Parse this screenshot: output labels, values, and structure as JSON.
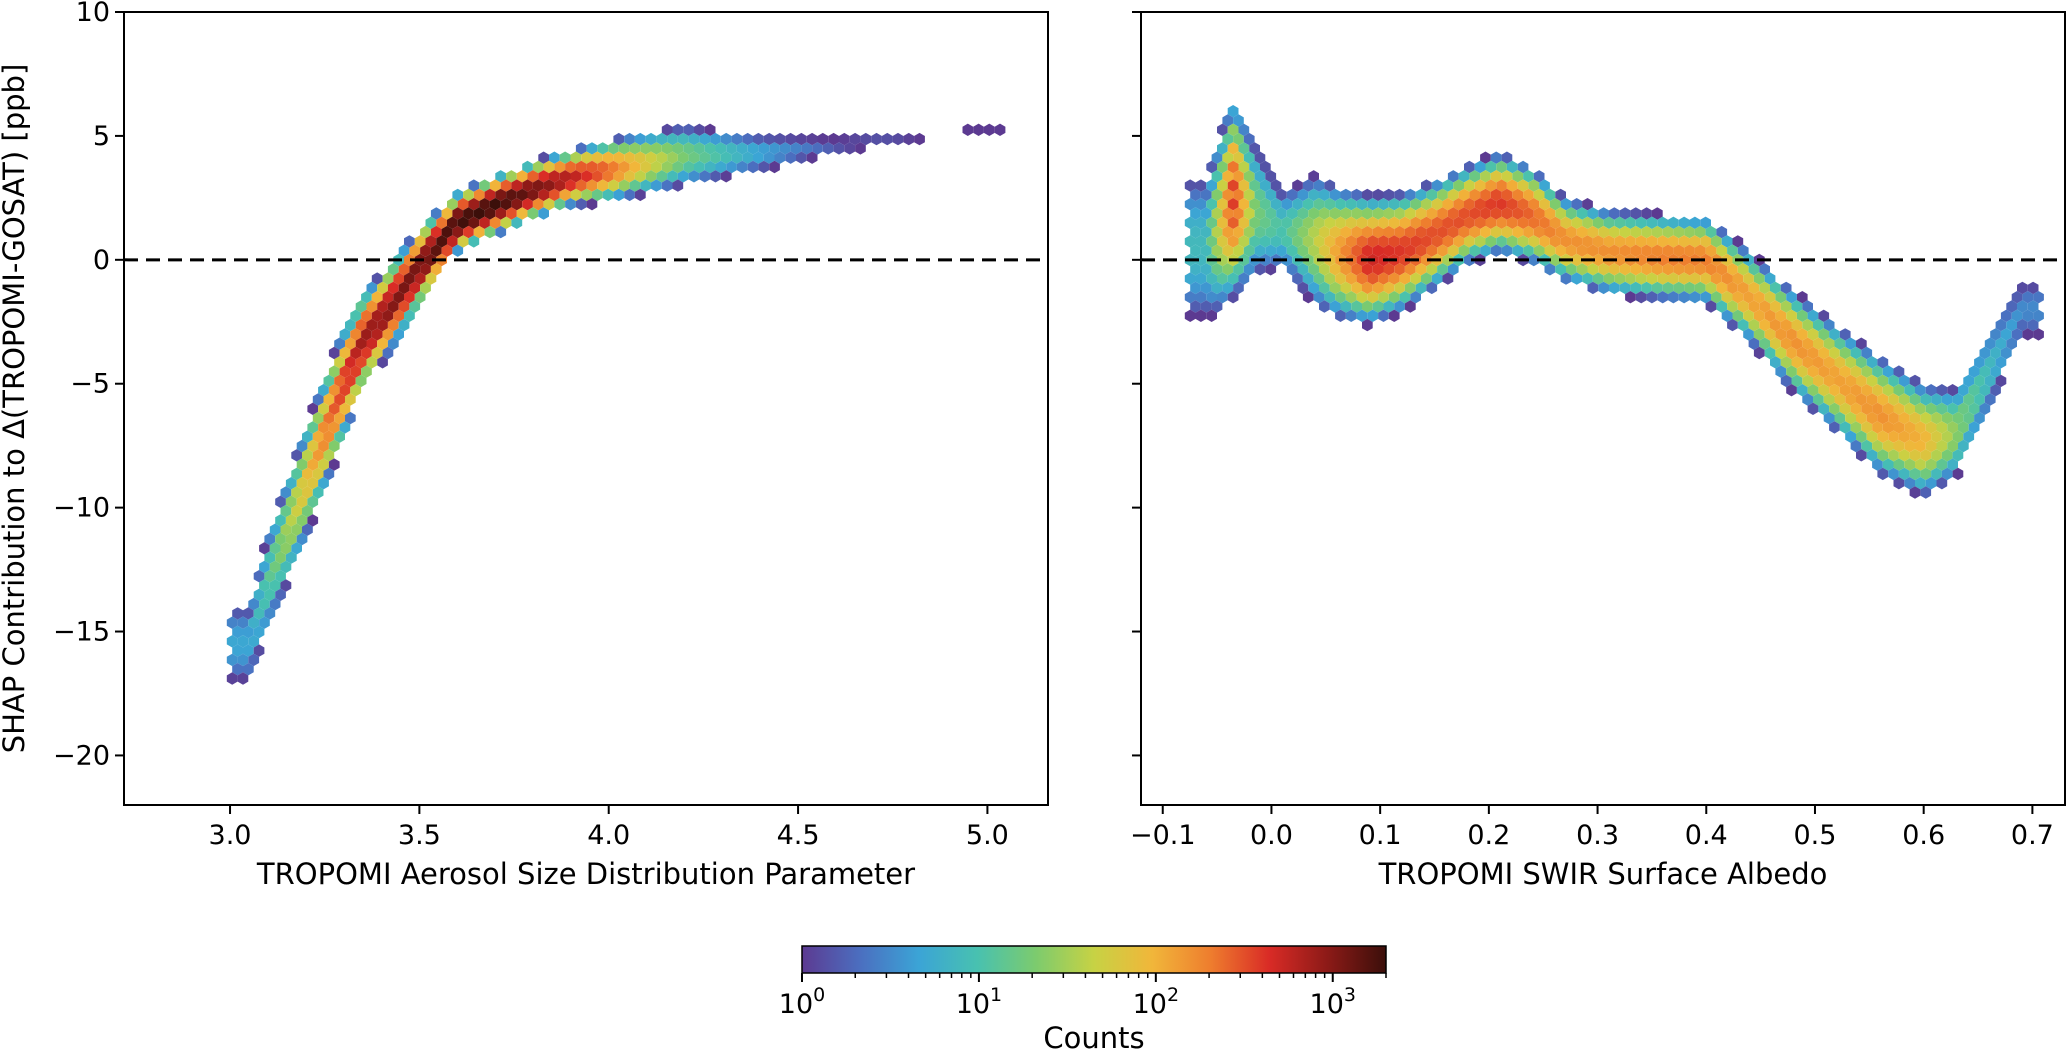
{
  "chart_data": [
    {
      "type": "heatmap",
      "subtype": "hexbin",
      "xlabel": "TROPOMI Aerosol Size Distribution Parameter",
      "ylabel": "SHAP Contribution to Δ(TROPOMI-GOSAT) [ppb]",
      "xlim": [
        2.72,
        5.16
      ],
      "ylim": [
        -22,
        10
      ],
      "xticks": [
        3.0,
        3.5,
        4.0,
        4.5,
        5.0
      ],
      "xtick_labels": [
        "3.0",
        "3.5",
        "4.0",
        "4.5",
        "5.0"
      ],
      "yticks": [
        10,
        5,
        0,
        -5,
        -10,
        -15,
        -20
      ],
      "ytick_labels": [
        "10",
        "5",
        "0",
        "−5",
        "−10",
        "−15",
        "−20"
      ],
      "reference_line": {
        "y": 0,
        "style": "dashed"
      },
      "density_ridge": [
        {
          "x": 3.05,
          "y": -15.5,
          "spread": 1.5,
          "log_count": 0.7
        },
        {
          "x": 3.1,
          "y": -13.0,
          "spread": 1.6,
          "log_count": 1.1
        },
        {
          "x": 3.15,
          "y": -11.0,
          "spread": 1.5,
          "log_count": 1.5
        },
        {
          "x": 3.2,
          "y": -9.0,
          "spread": 1.4,
          "log_count": 1.9
        },
        {
          "x": 3.25,
          "y": -7.0,
          "spread": 1.3,
          "log_count": 2.3
        },
        {
          "x": 3.3,
          "y": -5.0,
          "spread": 1.2,
          "log_count": 2.6
        },
        {
          "x": 3.35,
          "y": -3.3,
          "spread": 1.0,
          "log_count": 2.9
        },
        {
          "x": 3.42,
          "y": -2.0,
          "spread": 0.9,
          "log_count": 3.0
        },
        {
          "x": 3.5,
          "y": -0.3,
          "spread": 0.8,
          "log_count": 3.1
        },
        {
          "x": 3.6,
          "y": 1.5,
          "spread": 0.6,
          "log_count": 3.3
        },
        {
          "x": 3.7,
          "y": 2.2,
          "spread": 0.6,
          "log_count": 3.3
        },
        {
          "x": 3.8,
          "y": 2.8,
          "spread": 0.6,
          "log_count": 3.1
        },
        {
          "x": 3.9,
          "y": 3.3,
          "spread": 0.6,
          "log_count": 2.8
        },
        {
          "x": 4.0,
          "y": 3.6,
          "spread": 0.7,
          "log_count": 2.4
        },
        {
          "x": 4.1,
          "y": 3.9,
          "spread": 0.8,
          "log_count": 1.8
        },
        {
          "x": 4.2,
          "y": 4.2,
          "spread": 0.9,
          "log_count": 1.3
        },
        {
          "x": 4.4,
          "y": 4.3,
          "spread": 0.7,
          "log_count": 0.7
        },
        {
          "x": 4.6,
          "y": 4.6,
          "spread": 0.5,
          "log_count": 0.2
        },
        {
          "x": 4.8,
          "y": 5.0,
          "spread": 0.4,
          "log_count": 0.1
        },
        {
          "x": 5.0,
          "y": 5.2,
          "spread": 0.3,
          "log_count": 0.0
        }
      ]
    },
    {
      "type": "heatmap",
      "subtype": "hexbin",
      "xlabel": "TROPOMI SWIR Surface Albedo",
      "ylabel": "",
      "xlim": [
        -0.12,
        0.73
      ],
      "ylim": [
        -22,
        10
      ],
      "xticks": [
        -0.1,
        0.0,
        0.1,
        0.2,
        0.3,
        0.4,
        0.5,
        0.6,
        0.7
      ],
      "xtick_labels": [
        "−0.1",
        "0.0",
        "0.1",
        "0.2",
        "0.3",
        "0.4",
        "0.5",
        "0.6",
        "0.7"
      ],
      "yticks": [
        10,
        5,
        0,
        -5,
        -10,
        -15,
        -20
      ],
      "ytick_labels": [
        "",
        "",
        "",
        "",
        "",
        "",
        ""
      ],
      "reference_line": {
        "y": 0,
        "style": "dashed"
      },
      "density_ridge": [
        {
          "x": -0.06,
          "y": 0.5,
          "spread": 2.5,
          "log_count": 0.9
        },
        {
          "x": -0.035,
          "y": 2.5,
          "spread": 2.2,
          "log_count": 2.6
        },
        {
          "x": -0.015,
          "y": 2.0,
          "spread": 2.0,
          "log_count": 1.3
        },
        {
          "x": 0.01,
          "y": 1.2,
          "spread": 1.3,
          "log_count": 1.0
        },
        {
          "x": 0.04,
          "y": 0.8,
          "spread": 1.8,
          "log_count": 1.6
        },
        {
          "x": 0.06,
          "y": 0.3,
          "spread": 1.6,
          "log_count": 2.1
        },
        {
          "x": 0.09,
          "y": 0.0,
          "spread": 1.4,
          "log_count": 2.7
        },
        {
          "x": 0.12,
          "y": 0.3,
          "spread": 1.3,
          "log_count": 2.6
        },
        {
          "x": 0.15,
          "y": 1.0,
          "spread": 1.2,
          "log_count": 2.5
        },
        {
          "x": 0.18,
          "y": 1.8,
          "spread": 1.1,
          "log_count": 2.5
        },
        {
          "x": 0.21,
          "y": 2.3,
          "spread": 1.1,
          "log_count": 2.6
        },
        {
          "x": 0.24,
          "y": 1.8,
          "spread": 1.1,
          "log_count": 2.4
        },
        {
          "x": 0.27,
          "y": 0.8,
          "spread": 1.0,
          "log_count": 2.2
        },
        {
          "x": 0.31,
          "y": 0.3,
          "spread": 1.0,
          "log_count": 2.2
        },
        {
          "x": 0.36,
          "y": 0.1,
          "spread": 1.0,
          "log_count": 2.3
        },
        {
          "x": 0.4,
          "y": 0.0,
          "spread": 1.0,
          "log_count": 2.3
        },
        {
          "x": 0.44,
          "y": -1.5,
          "spread": 1.1,
          "log_count": 2.1
        },
        {
          "x": 0.48,
          "y": -3.3,
          "spread": 1.2,
          "log_count": 2.2
        },
        {
          "x": 0.52,
          "y": -4.8,
          "spread": 1.3,
          "log_count": 2.1
        },
        {
          "x": 0.56,
          "y": -6.3,
          "spread": 1.4,
          "log_count": 2.2
        },
        {
          "x": 0.6,
          "y": -7.3,
          "spread": 1.4,
          "log_count": 2.0
        },
        {
          "x": 0.63,
          "y": -7.0,
          "spread": 1.3,
          "log_count": 1.4
        },
        {
          "x": 0.66,
          "y": -4.5,
          "spread": 1.5,
          "log_count": 0.9
        },
        {
          "x": 0.69,
          "y": -2.0,
          "spread": 1.2,
          "log_count": 0.5
        }
      ]
    }
  ],
  "colorbar": {
    "label": "Counts",
    "scale": "log",
    "range": [
      1,
      2000
    ],
    "tick_values": [
      1,
      10,
      100,
      1000
    ],
    "tick_labels": [
      {
        "base": "10",
        "exp": "0"
      },
      {
        "base": "10",
        "exp": "1"
      },
      {
        "base": "10",
        "exp": "2"
      },
      {
        "base": "10",
        "exp": "3"
      }
    ],
    "colormap": [
      "#5c3a91",
      "#4b6fc0",
      "#3ba4d6",
      "#48c1b0",
      "#7ccb6e",
      "#c7d244",
      "#f1b63a",
      "#ee7d2e",
      "#d92b26",
      "#8c1a17",
      "#3b0f0a"
    ]
  }
}
